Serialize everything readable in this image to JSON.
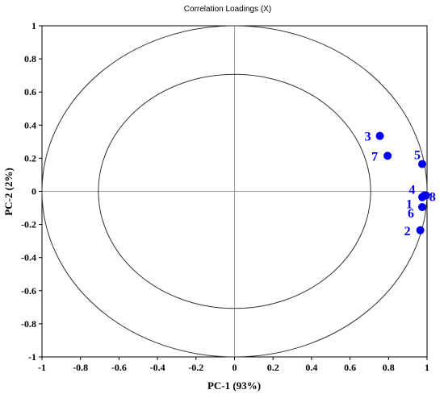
{
  "chart_data": {
    "type": "scatter",
    "title": "Correlation Loadings (X)",
    "xlabel": "PC-1 (93%)",
    "ylabel": "PC-2 (2%)",
    "xlim": [
      -1,
      1
    ],
    "ylim": [
      -1,
      1
    ],
    "xticks": [
      "-1",
      "-0.8",
      "-0.6",
      "-0.4",
      "-0.2",
      "0",
      "0.2",
      "0.4",
      "0.6",
      "0.8",
      "1"
    ],
    "yticks": [
      "1",
      "0.8",
      "0.6",
      "0.4",
      "0.2",
      "0",
      "-0.2",
      "-0.4",
      "-0.6",
      "-0.8",
      "-1"
    ],
    "circles": [
      1.0,
      0.7071
    ],
    "point_color": "#0000ee",
    "points": [
      {
        "label": "1",
        "x": 0.975,
        "y": -0.035
      },
      {
        "label": "2",
        "x": 0.965,
        "y": -0.235
      },
      {
        "label": "3",
        "x": 0.755,
        "y": 0.335
      },
      {
        "label": "4",
        "x": 0.985,
        "y": -0.025
      },
      {
        "label": "5",
        "x": 0.975,
        "y": 0.165
      },
      {
        "label": "6",
        "x": 0.975,
        "y": -0.095
      },
      {
        "label": "7",
        "x": 0.795,
        "y": 0.215
      },
      {
        "label": "8",
        "x": 0.995,
        "y": -0.025
      }
    ]
  }
}
